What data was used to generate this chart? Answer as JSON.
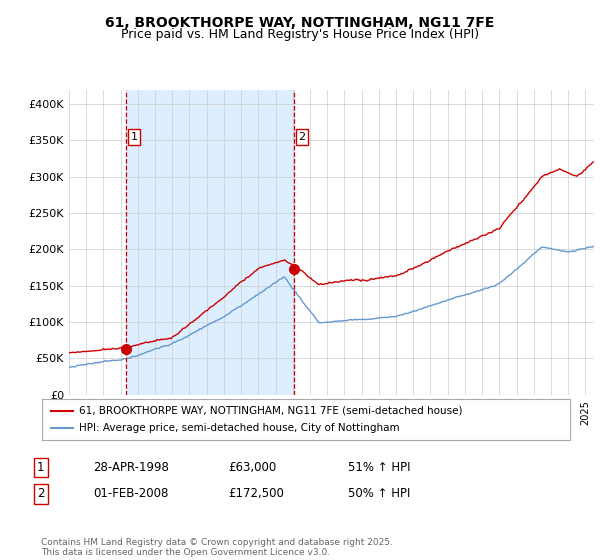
{
  "title_line1": "61, BROOKTHORPE WAY, NOTTINGHAM, NG11 7FE",
  "title_line2": "Price paid vs. HM Land Registry's House Price Index (HPI)",
  "ylabel_ticks": [
    "£0",
    "£50K",
    "£100K",
    "£150K",
    "£200K",
    "£250K",
    "£300K",
    "£350K",
    "£400K"
  ],
  "ytick_values": [
    0,
    50000,
    100000,
    150000,
    200000,
    250000,
    300000,
    350000,
    400000
  ],
  "ylim": [
    0,
    420000
  ],
  "xlim_start": 1995.0,
  "xlim_end": 2025.5,
  "sale1_x": 1998.33,
  "sale1_y": 63000,
  "sale1_label": "1",
  "sale2_x": 2008.08,
  "sale2_y": 172500,
  "sale2_label": "2",
  "legend_line1": "61, BROOKTHORPE WAY, NOTTINGHAM, NG11 7FE (semi-detached house)",
  "legend_line2": "HPI: Average price, semi-detached house, City of Nottingham",
  "table_row1": [
    "1",
    "28-APR-1998",
    "£63,000",
    "51% ↑ HPI"
  ],
  "table_row2": [
    "2",
    "01-FEB-2008",
    "£172,500",
    "50% ↑ HPI"
  ],
  "footer": "Contains HM Land Registry data © Crown copyright and database right 2025.\nThis data is licensed under the Open Government Licence v3.0.",
  "color_red": "#cc0000",
  "color_blue": "#6699cc",
  "color_vline": "#cc0000",
  "color_shade": "#ddeeff",
  "background": "#ffffff",
  "grid_color": "#cccccc",
  "title1_fontsize": 10,
  "title2_fontsize": 9
}
